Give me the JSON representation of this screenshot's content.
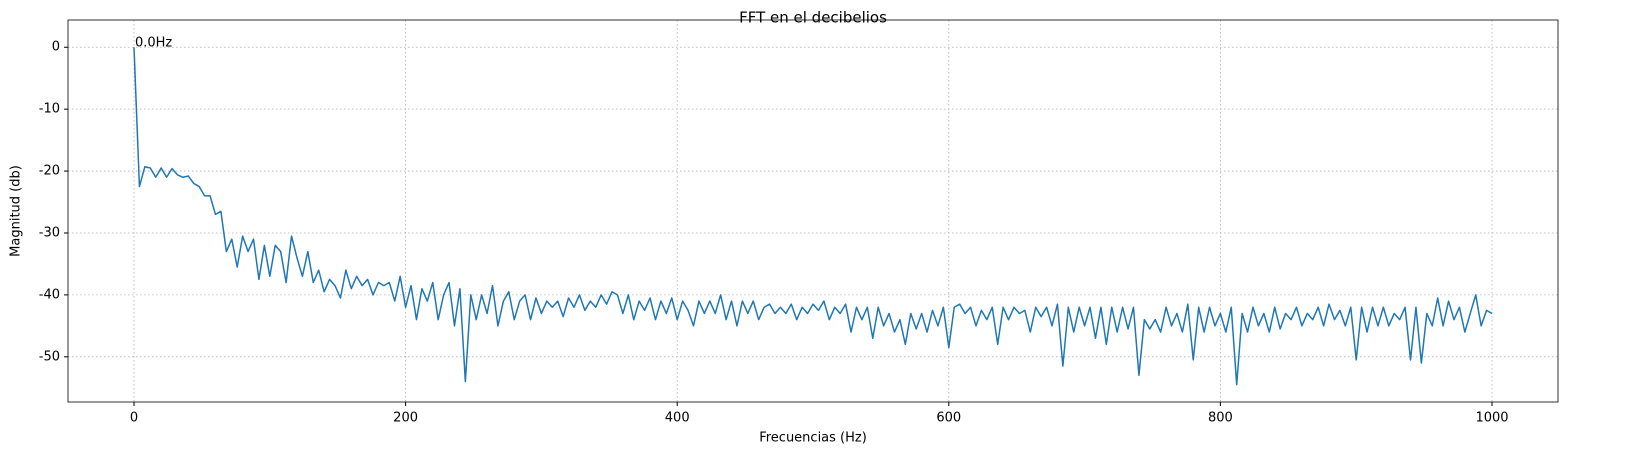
{
  "chart_data": {
    "type": "line",
    "title": "FFT en el decibelios",
    "xlabel": "Frecuencias (Hz)",
    "ylabel": "Magnitud (db)",
    "x": [
      0,
      4,
      8,
      12,
      16,
      20,
      24,
      28,
      32,
      36,
      40,
      44,
      48,
      52,
      56,
      60,
      64,
      68,
      72,
      76,
      80,
      84,
      88,
      92,
      96,
      100,
      104,
      108,
      112,
      116,
      120,
      124,
      128,
      132,
      136,
      140,
      144,
      148,
      152,
      156,
      160,
      164,
      168,
      172,
      176,
      180,
      184,
      188,
      192,
      196,
      200,
      204,
      208,
      212,
      216,
      220,
      224,
      228,
      232,
      236,
      240,
      244,
      248,
      252,
      256,
      260,
      264,
      268,
      272,
      276,
      280,
      284,
      288,
      292,
      296,
      300,
      304,
      308,
      312,
      316,
      320,
      324,
      328,
      332,
      336,
      340,
      344,
      348,
      352,
      356,
      360,
      364,
      368,
      372,
      376,
      380,
      384,
      388,
      392,
      396,
      400,
      404,
      408,
      412,
      416,
      420,
      424,
      428,
      432,
      436,
      440,
      444,
      448,
      452,
      456,
      460,
      464,
      468,
      472,
      476,
      480,
      484,
      488,
      492,
      496,
      500,
      504,
      508,
      512,
      516,
      520,
      524,
      528,
      532,
      536,
      540,
      544,
      548,
      552,
      556,
      560,
      564,
      568,
      572,
      576,
      580,
      584,
      588,
      592,
      596,
      600,
      604,
      608,
      612,
      616,
      620,
      624,
      628,
      632,
      636,
      640,
      644,
      648,
      652,
      656,
      660,
      664,
      668,
      672,
      676,
      680,
      684,
      688,
      692,
      696,
      700,
      704,
      708,
      712,
      716,
      720,
      724,
      728,
      732,
      736,
      740,
      744,
      748,
      752,
      756,
      760,
      764,
      768,
      772,
      776,
      780,
      784,
      788,
      792,
      796,
      800,
      804,
      808,
      812,
      816,
      820,
      824,
      828,
      832,
      836,
      840,
      844,
      848,
      852,
      856,
      860,
      864,
      868,
      872,
      876,
      880,
      884,
      888,
      892,
      896,
      900,
      904,
      908,
      912,
      916,
      920,
      924,
      928,
      932,
      936,
      940,
      944,
      948,
      952,
      956,
      960,
      964,
      968,
      972,
      976,
      980,
      984,
      988,
      992,
      996,
      1000
    ],
    "values": [
      0,
      -22.5,
      -19.3,
      -19.5,
      -21,
      -19.5,
      -21,
      -19.6,
      -20.6,
      -21,
      -20.8,
      -22,
      -22.5,
      -24,
      -24,
      -27,
      -26.5,
      -33,
      -31,
      -35.5,
      -30.5,
      -33,
      -31,
      -37.5,
      -32,
      -37,
      -32,
      -33,
      -38,
      -30.5,
      -34,
      -37,
      -33,
      -38,
      -36,
      -39.5,
      -37.5,
      -38.5,
      -40.5,
      -36,
      -39,
      -37,
      -38.5,
      -37.5,
      -40,
      -38,
      -38.5,
      -38,
      -41,
      -37,
      -42,
      -38.5,
      -44,
      -39,
      -41,
      -38,
      -44,
      -40,
      -38,
      -45,
      -39,
      -54,
      -40,
      -44,
      -40,
      -43,
      -38.5,
      -45,
      -41,
      -39.5,
      -44,
      -41,
      -40,
      -44,
      -40.5,
      -43,
      -41,
      -42,
      -41,
      -43.5,
      -40.5,
      -42,
      -40,
      -42.5,
      -41,
      -42,
      -40,
      -41.5,
      -39.5,
      -40,
      -43,
      -40,
      -44,
      -41,
      -42.5,
      -40.5,
      -44,
      -41,
      -43,
      -40.5,
      -44,
      -41,
      -42.5,
      -45,
      -41,
      -43,
      -41,
      -43,
      -40,
      -44,
      -41,
      -45,
      -41,
      -43,
      -41,
      -44,
      -42,
      -41.5,
      -43,
      -42,
      -43,
      -41.5,
      -44,
      -42,
      -43,
      -41.5,
      -42.5,
      -41,
      -44,
      -42,
      -43,
      -41.5,
      -46,
      -42,
      -44,
      -42,
      -47,
      -42,
      -45,
      -43,
      -46,
      -44,
      -48,
      -43,
      -45.5,
      -43,
      -46,
      -42.5,
      -45,
      -42,
      -48.5,
      -42,
      -41.5,
      -43,
      -42,
      -45,
      -42.5,
      -44,
      -42,
      -48,
      -42,
      -44,
      -42,
      -43,
      -42.5,
      -46,
      -42,
      -43.5,
      -42,
      -45,
      -41.5,
      -51.5,
      -42,
      -46,
      -42,
      -45,
      -42,
      -47,
      -42,
      -48,
      -42,
      -46,
      -42,
      -45.5,
      -42,
      -53,
      -44,
      -45.5,
      -44,
      -46,
      -42,
      -45,
      -43,
      -46,
      -41.5,
      -50.5,
      -42,
      -46,
      -42,
      -45,
      -43,
      -46,
      -42,
      -54.5,
      -43,
      -46,
      -42,
      -45,
      -43,
      -46,
      -42,
      -45.5,
      -43,
      -44,
      -42,
      -45,
      -43,
      -44,
      -42,
      -45,
      -41.5,
      -44,
      -42.5,
      -45,
      -42,
      -50.5,
      -42,
      -46,
      -42,
      -45,
      -42,
      -45,
      -43,
      -44,
      -42,
      -50.5,
      -42,
      -51,
      -43,
      -45,
      -40.5,
      -45,
      -41,
      -44,
      -42,
      -46,
      -43,
      -40,
      -45,
      -42.5,
      -43
    ],
    "color": "#1f77b4",
    "annotation": {
      "text": "0.0Hz",
      "x": 0,
      "y": 0
    },
    "xlim": [
      -48.6,
      1048.6
    ],
    "ylim": [
      -57.3,
      4.4
    ],
    "xticks": [
      0,
      200,
      400,
      600,
      800,
      1000
    ],
    "yticks": [
      -50,
      -40,
      -30,
      -20,
      -10,
      0
    ],
    "grid": true
  }
}
